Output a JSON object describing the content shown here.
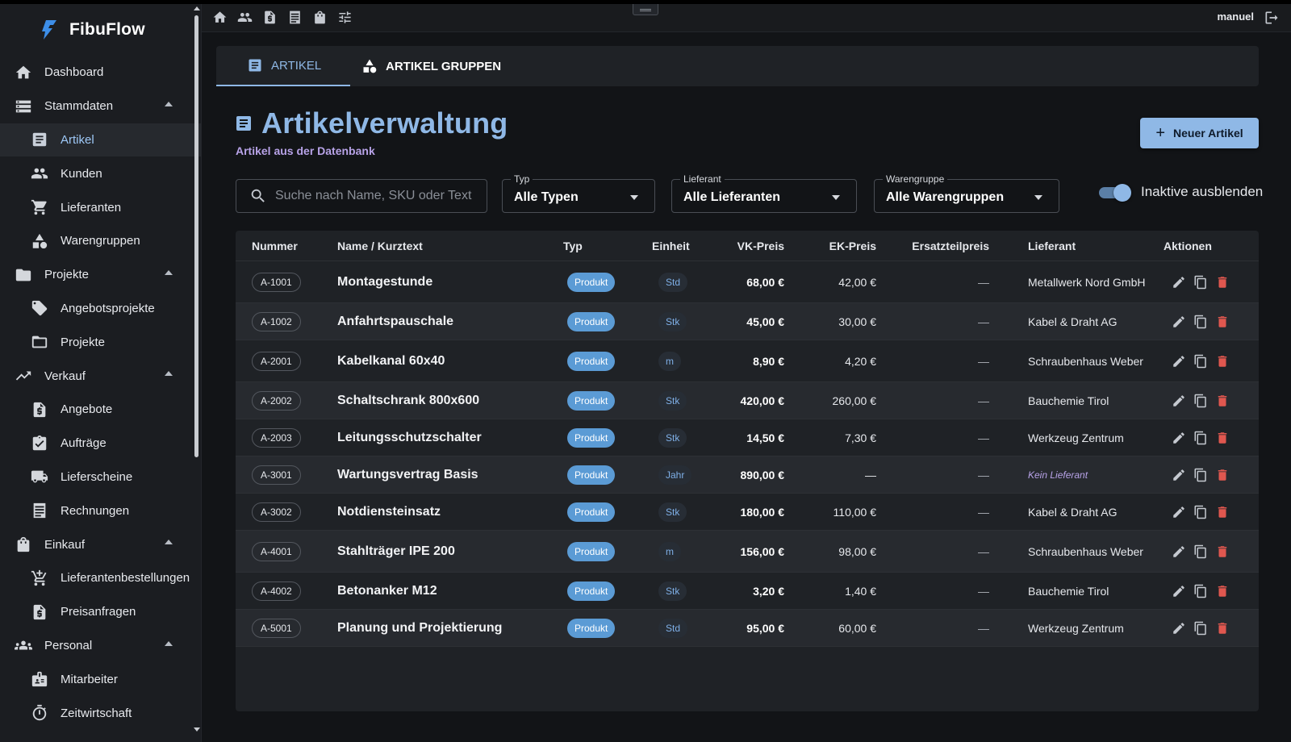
{
  "app": {
    "name": "FibuFlow"
  },
  "user": {
    "name": "manuel"
  },
  "sidebar": {
    "items": [
      {
        "label": "Dashboard",
        "icon": "home-icon",
        "level": "top",
        "active": false,
        "expandable": false
      },
      {
        "label": "Stammdaten",
        "icon": "storage-icon",
        "level": "top",
        "active": false,
        "expandable": true
      },
      {
        "label": "Artikel",
        "icon": "article-icon",
        "level": "sub",
        "active": true,
        "expandable": false
      },
      {
        "label": "Kunden",
        "icon": "people-icon",
        "level": "sub",
        "active": false,
        "expandable": false
      },
      {
        "label": "Lieferanten",
        "icon": "cart-icon",
        "level": "sub",
        "active": false,
        "expandable": false
      },
      {
        "label": "Warengruppen",
        "icon": "category-icon",
        "level": "sub",
        "active": false,
        "expandable": false
      },
      {
        "label": "Projekte",
        "icon": "folder-icon",
        "level": "top",
        "active": false,
        "expandable": true
      },
      {
        "label": "Angebotsprojekte",
        "icon": "tag-icon",
        "level": "sub",
        "active": false,
        "expandable": false
      },
      {
        "label": "Projekte",
        "icon": "folder-outline-icon",
        "level": "sub",
        "active": false,
        "expandable": false
      },
      {
        "label": "Verkauf",
        "icon": "trending-up-icon",
        "level": "top",
        "active": false,
        "expandable": true
      },
      {
        "label": "Angebote",
        "icon": "request-quote-icon",
        "level": "sub",
        "active": false,
        "expandable": false
      },
      {
        "label": "Aufträge",
        "icon": "assignment-check-icon",
        "level": "sub",
        "active": false,
        "expandable": false
      },
      {
        "label": "Lieferscheine",
        "icon": "truck-icon",
        "level": "sub",
        "active": false,
        "expandable": false
      },
      {
        "label": "Rechnungen",
        "icon": "receipt-icon",
        "level": "sub",
        "active": false,
        "expandable": false
      },
      {
        "label": "Einkauf",
        "icon": "shopping-bag-icon",
        "level": "top",
        "active": false,
        "expandable": true
      },
      {
        "label": "Lieferantenbestellungen",
        "icon": "add-shopping-cart-icon",
        "level": "sub",
        "active": false,
        "expandable": false
      },
      {
        "label": "Preisanfragen",
        "icon": "request-quote-icon",
        "level": "sub",
        "active": false,
        "expandable": false
      },
      {
        "label": "Personal",
        "icon": "groups-icon",
        "level": "top",
        "active": false,
        "expandable": true
      },
      {
        "label": "Mitarbeiter",
        "icon": "badge-icon",
        "level": "sub",
        "active": false,
        "expandable": false
      },
      {
        "label": "Zeitwirtschaft",
        "icon": "timer-icon",
        "level": "sub",
        "active": false,
        "expandable": false
      }
    ]
  },
  "topbar": {
    "icons": [
      "home-icon",
      "people-icon",
      "request-quote-icon",
      "receipt-icon",
      "shopping-bag-icon",
      "tune-icon"
    ]
  },
  "tabs": [
    {
      "label": "ARTIKEL",
      "icon": "article-icon",
      "active": true
    },
    {
      "label": "ARTIKEL GRUPPEN",
      "icon": "category-icon",
      "active": false
    }
  ],
  "header": {
    "title": "Artikelverwaltung",
    "subtitle": "Artikel aus der Datenbank",
    "new_button": "Neuer Artikel"
  },
  "filters": {
    "search_placeholder": "Suche nach Name, SKU oder Text",
    "type": {
      "label": "Typ",
      "value": "Alle Typen"
    },
    "supplier": {
      "label": "Lieferant",
      "value": "Alle Lieferanten"
    },
    "group": {
      "label": "Warengruppe",
      "value": "Alle Warengruppen"
    },
    "toggle": {
      "label": "Inaktive ausblenden",
      "on": true
    }
  },
  "table": {
    "columns": [
      "Nummer",
      "Name / Kurztext",
      "Typ",
      "Einheit",
      "VK-Preis",
      "EK-Preis",
      "Ersatzteilpreis",
      "Lieferant",
      "Aktionen"
    ],
    "rows": [
      {
        "nr": "A-1001",
        "name": "Montagestunde",
        "typ": "Produkt",
        "einheit": "Std",
        "vk": "68,00 €",
        "ek": "42,00 €",
        "ers": "—",
        "lief": "Metallwerk Nord GmbH",
        "no_lief": false
      },
      {
        "nr": "A-1002",
        "name": "Anfahrtspauschale",
        "typ": "Produkt",
        "einheit": "Stk",
        "vk": "45,00 €",
        "ek": "30,00 €",
        "ers": "—",
        "lief": "Kabel & Draht AG",
        "no_lief": false
      },
      {
        "nr": "A-2001",
        "name": "Kabelkanal 60x40",
        "typ": "Produkt",
        "einheit": "m",
        "vk": "8,90 €",
        "ek": "4,20 €",
        "ers": "—",
        "lief": "Schraubenhaus Weber",
        "no_lief": false
      },
      {
        "nr": "A-2002",
        "name": "Schaltschrank 800x600",
        "typ": "Produkt",
        "einheit": "Stk",
        "vk": "420,00 €",
        "ek": "260,00 €",
        "ers": "—",
        "lief": "Bauchemie Tirol",
        "no_lief": false
      },
      {
        "nr": "A-2003",
        "name": "Leitungsschutzschalter",
        "typ": "Produkt",
        "einheit": "Stk",
        "vk": "14,50 €",
        "ek": "7,30 €",
        "ers": "—",
        "lief": "Werkzeug Zentrum",
        "no_lief": false
      },
      {
        "nr": "A-3001",
        "name": "Wartungsvertrag Basis",
        "typ": "Produkt",
        "einheit": "Jahr",
        "vk": "890,00 €",
        "ek": "—",
        "ers": "—",
        "lief": "Kein Lieferant",
        "no_lief": true
      },
      {
        "nr": "A-3002",
        "name": "Notdiensteinsatz",
        "typ": "Produkt",
        "einheit": "Stk",
        "vk": "180,00 €",
        "ek": "110,00 €",
        "ers": "—",
        "lief": "Kabel & Draht AG",
        "no_lief": false
      },
      {
        "nr": "A-4001",
        "name": "Stahlträger IPE 200",
        "typ": "Produkt",
        "einheit": "m",
        "vk": "156,00 €",
        "ek": "98,00 €",
        "ers": "—",
        "lief": "Schraubenhaus Weber",
        "no_lief": false
      },
      {
        "nr": "A-4002",
        "name": "Betonanker M12",
        "typ": "Produkt",
        "einheit": "Stk",
        "vk": "3,20 €",
        "ek": "1,40 €",
        "ers": "—",
        "lief": "Bauchemie Tirol",
        "no_lief": false
      },
      {
        "nr": "A-5001",
        "name": "Planung und Projektierung",
        "typ": "Produkt",
        "einheit": "Std",
        "vk": "95,00 €",
        "ek": "60,00 €",
        "ers": "—",
        "lief": "Werkzeug Zentrum",
        "no_lief": false
      }
    ],
    "action_icons": [
      "edit-icon",
      "copy-icon",
      "delete-icon"
    ]
  },
  "colors": {
    "accent": "#8fb8e6",
    "subtitle": "#b8a3e8",
    "chip_type": "#5b9bd5",
    "delete": "#e0574f",
    "sidebar_bg": "#1b1d21",
    "page_bg": "#121417",
    "card_bg": "#1f2226"
  }
}
